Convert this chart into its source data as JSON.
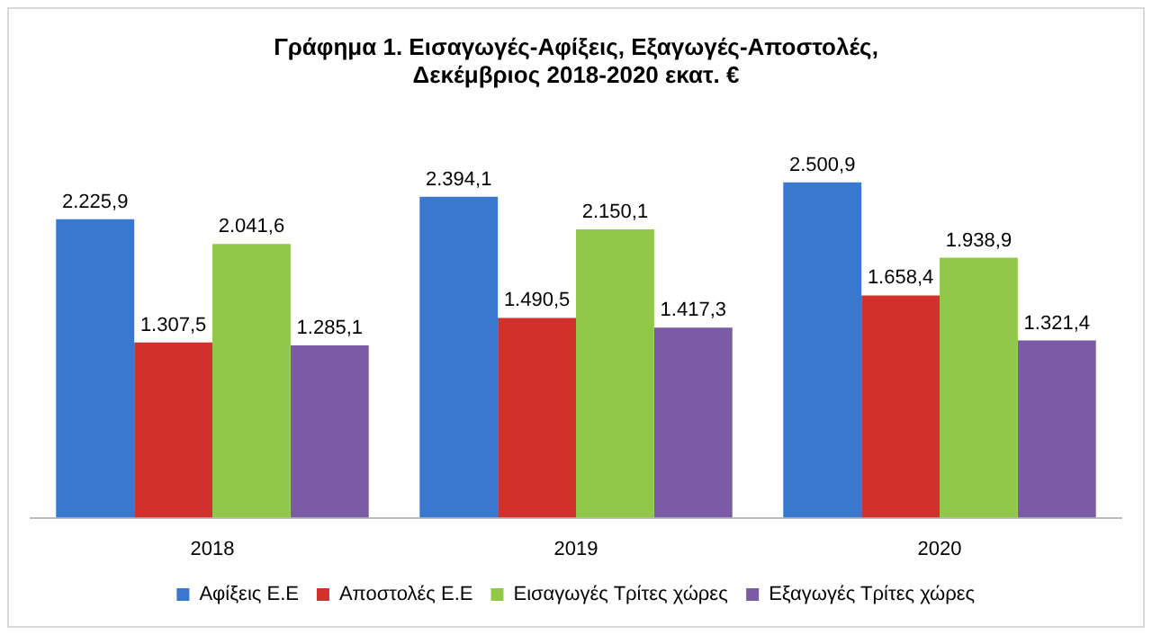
{
  "chart_data": {
    "type": "bar",
    "title": "Γράφημα 1. Εισαγωγές-Αφίξεις, Εξαγωγές-Αποστολές,\nΔεκέμβριος 2018-2020 εκατ. €",
    "categories": [
      "2018",
      "2019",
      "2020"
    ],
    "series": [
      {
        "name": "Αφίξεις Ε.Ε",
        "color": "#3a78d0",
        "values": [
          2225.9,
          2394.1,
          2500.9
        ],
        "value_labels": [
          "2.225,9",
          "2.394,1",
          "2.500,9"
        ]
      },
      {
        "name": "Αποστολές Ε.Ε",
        "color": "#d0312d",
        "values": [
          1307.5,
          1490.5,
          1658.4
        ],
        "value_labels": [
          "1.307,5",
          "1.490,5",
          "1.658,4"
        ]
      },
      {
        "name": "Εισαγωγές Τρίτες χώρες",
        "color": "#92c84a",
        "values": [
          2041.6,
          2150.1,
          1938.9
        ],
        "value_labels": [
          "2.041,6",
          "2.150,1",
          "1.938,9"
        ]
      },
      {
        "name": "Εξαγωγές Τρίτες χώρες",
        "color": "#7b5aa6",
        "values": [
          1285.1,
          1417.3,
          1321.4
        ],
        "value_labels": [
          "1.285,1",
          "1.417,3",
          "1.321,4"
        ]
      }
    ],
    "grid": false,
    "legend": "bottom"
  }
}
